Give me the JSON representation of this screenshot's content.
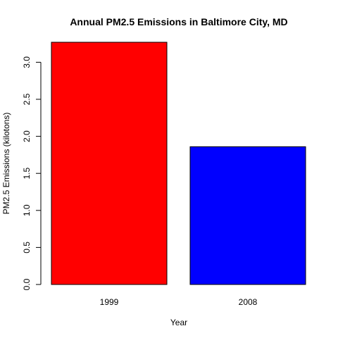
{
  "chart_data": {
    "type": "bar",
    "title": "Annual PM2.5 Emissions in Baltimore City, MD",
    "xlabel": "Year",
    "ylabel": "PM2.5 Emissions (kilotons)",
    "categories": [
      "1999",
      "2008"
    ],
    "values": [
      3.27,
      1.86
    ],
    "colors": [
      "#ff0000",
      "#0000ff"
    ],
    "bar_border_color": "#000000",
    "ylim": [
      0,
      3.27
    ],
    "yticks": [
      0.0,
      0.5,
      1.0,
      1.5,
      2.0,
      2.5,
      3.0
    ],
    "ytick_labels": [
      "0.0",
      "0.5",
      "1.0",
      "1.5",
      "2.0",
      "2.5",
      "3.0"
    ],
    "grid": false,
    "legend": "none"
  }
}
